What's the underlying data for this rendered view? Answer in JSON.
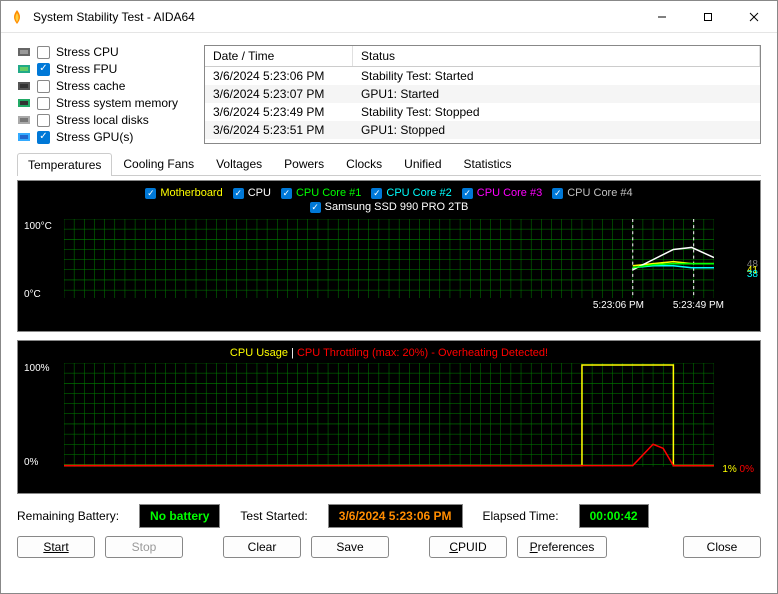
{
  "window": {
    "title": "System Stability Test - AIDA64"
  },
  "stress": {
    "items": [
      {
        "label": "Stress CPU",
        "checked": false,
        "icon_colors": [
          "#666",
          "#999"
        ]
      },
      {
        "label": "Stress FPU",
        "checked": true,
        "icon_colors": [
          "#2a8",
          "#6c6"
        ]
      },
      {
        "label": "Stress cache",
        "checked": false,
        "icon_colors": [
          "#555",
          "#333"
        ]
      },
      {
        "label": "Stress system memory",
        "checked": false,
        "icon_colors": [
          "#2a6",
          "#333"
        ]
      },
      {
        "label": "Stress local disks",
        "checked": false,
        "icon_colors": [
          "#aaa",
          "#777"
        ]
      },
      {
        "label": "Stress GPU(s)",
        "checked": true,
        "icon_colors": [
          "#3af",
          "#26c"
        ]
      }
    ]
  },
  "log": {
    "headers": {
      "datetime": "Date / Time",
      "status": "Status"
    },
    "rows": [
      {
        "dt": "3/6/2024 5:23:06 PM",
        "st": "Stability Test: Started"
      },
      {
        "dt": "3/6/2024 5:23:07 PM",
        "st": "GPU1: Started"
      },
      {
        "dt": "3/6/2024 5:23:49 PM",
        "st": "Stability Test: Stopped"
      },
      {
        "dt": "3/6/2024 5:23:51 PM",
        "st": "GPU1: Stopped"
      }
    ]
  },
  "tabs": {
    "items": [
      "Temperatures",
      "Cooling Fans",
      "Voltages",
      "Powers",
      "Clocks",
      "Unified",
      "Statistics"
    ],
    "active": "Temperatures"
  },
  "chart1": {
    "type": "line",
    "ylim": [
      0,
      100
    ],
    "y_unit": "°C",
    "y_top": "100°C",
    "y_bot": "0°C",
    "x_left": "5:23:06 PM",
    "x_right": "5:23:49 PM",
    "grid_color": "#008000",
    "background_color": "#000000",
    "legend": [
      {
        "label": "Motherboard",
        "color": "#ffff00"
      },
      {
        "label": "CPU",
        "color": "#ffffff"
      },
      {
        "label": "CPU Core #1",
        "color": "#00ff00"
      },
      {
        "label": "CPU Core #2",
        "color": "#00ffff"
      },
      {
        "label": "CPU Core #3",
        "color": "#ff00ff"
      },
      {
        "label": "CPU Core #4",
        "color": "#c0c0c0"
      }
    ],
    "legend2": [
      {
        "label": "Samsung SSD 990 PRO 2TB",
        "color": "#ffffff"
      }
    ],
    "right_values": [
      {
        "text": "48",
        "color": "#808080",
        "top": 38
      },
      {
        "text": "41",
        "color": "#ffff00",
        "top": 44
      },
      {
        "text": "38",
        "color": "#00ffff",
        "top": 48
      }
    ]
  },
  "chart2": {
    "type": "line",
    "ylim": [
      0,
      100
    ],
    "y_top": "100%",
    "y_bot": "0%",
    "title_a": "CPU Usage",
    "title_a_color": "#ffff00",
    "title_sep": " | ",
    "title_b": "CPU Throttling (max: 20%) - Overheating Detected!",
    "title_b_color": "#ff0000",
    "grid_color": "#008000",
    "background_color": "#000000",
    "usage_line_color": "#ffff00",
    "throttle_line_color": "#ff0000",
    "right_values": [
      {
        "text": "1%",
        "color": "#ffff00"
      },
      {
        "text": "0%",
        "color": "#ff0000"
      }
    ]
  },
  "status": {
    "battery_label": "Remaining Battery:",
    "battery_value": "No battery",
    "started_label": "Test Started:",
    "started_value": "3/6/2024 5:23:06 PM",
    "elapsed_label": "Elapsed Time:",
    "elapsed_value": "00:00:42"
  },
  "buttons": {
    "start": "Start",
    "stop": "Stop",
    "clear": "Clear",
    "save": "Save",
    "cpuid": "CPUID",
    "prefs": "Preferences",
    "close": "Close"
  }
}
